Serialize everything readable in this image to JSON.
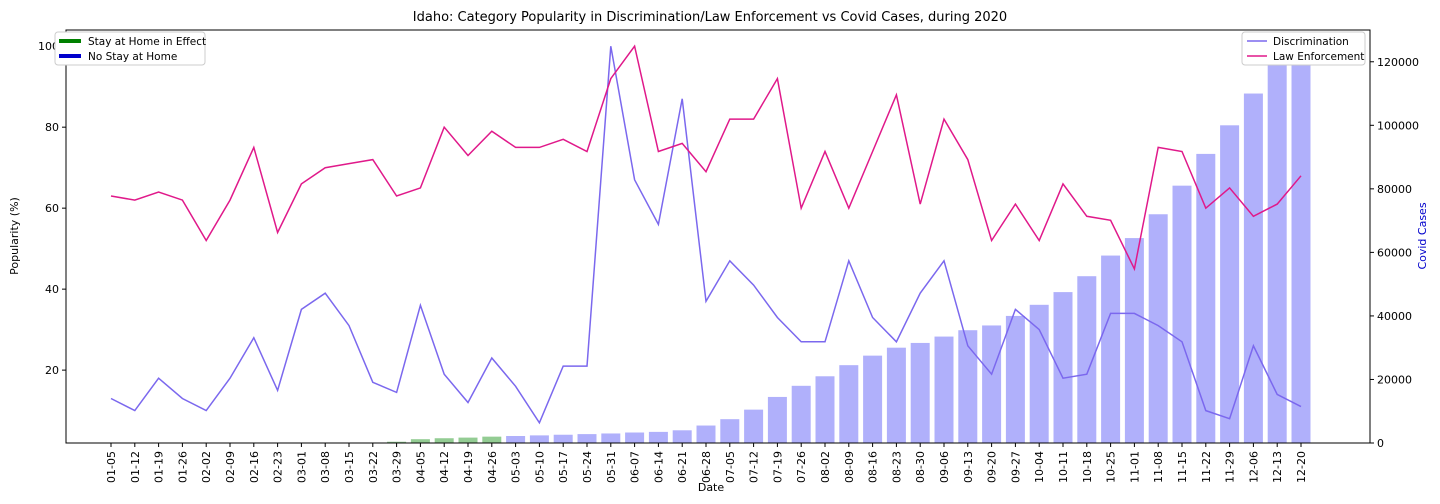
{
  "chart_data": {
    "type": "bar+line",
    "title": "Idaho: Category Popularity in Discrimination/Law Enforcement vs Covid Cases, during 2020",
    "xlabel": "Date",
    "ylabel_left": "Popularity (%)",
    "ylabel_right": "Covid Cases",
    "ylim_left": [
      2,
      104
    ],
    "ylim_right": [
      0,
      130000
    ],
    "yticks_left": [
      20,
      40,
      60,
      80,
      100
    ],
    "yticks_right": [
      0,
      20000,
      40000,
      60000,
      80000,
      100000,
      120000
    ],
    "categories": [
      "01-05",
      "01-12",
      "01-19",
      "01-26",
      "02-02",
      "02-09",
      "02-16",
      "02-23",
      "03-01",
      "03-08",
      "03-15",
      "03-22",
      "03-29",
      "04-05",
      "04-12",
      "04-19",
      "04-26",
      "05-03",
      "05-10",
      "05-17",
      "05-24",
      "05-31",
      "06-07",
      "06-14",
      "06-21",
      "06-28",
      "07-05",
      "07-12",
      "07-19",
      "07-26",
      "08-02",
      "08-09",
      "08-16",
      "08-23",
      "08-30",
      "09-06",
      "09-13",
      "09-20",
      "09-27",
      "10-04",
      "10-11",
      "10-18",
      "10-25",
      "11-01",
      "11-08",
      "11-15",
      "11-22",
      "11-29",
      "12-06",
      "12-13",
      "12-20"
    ],
    "series": [
      {
        "name": "Discrimination",
        "color": "#7b68ee",
        "axis": "left",
        "values": [
          13,
          10,
          18,
          13,
          10,
          18,
          28,
          15,
          35,
          39,
          31,
          17,
          14.5,
          36,
          19,
          12,
          23,
          16,
          7,
          21,
          21,
          100,
          67,
          56,
          87,
          37,
          47,
          41,
          33,
          27,
          27,
          47,
          33,
          27,
          39,
          47,
          26,
          19,
          35,
          30,
          18,
          19,
          34,
          34,
          31,
          27,
          10,
          8,
          26,
          14,
          11
        ]
      },
      {
        "name": "Law Enforcement",
        "color": "#e0198a",
        "axis": "left",
        "values": [
          63,
          62,
          64,
          62,
          52,
          62,
          75,
          54,
          66,
          70,
          71,
          72,
          63,
          65,
          80,
          73,
          79,
          75,
          75,
          77,
          74,
          92,
          100,
          74,
          76,
          69,
          82,
          82,
          92,
          60,
          74,
          60,
          74,
          88,
          61,
          82,
          72,
          52,
          61,
          52,
          66,
          58,
          57,
          45,
          75,
          74,
          60,
          65,
          58,
          61,
          68
        ]
      },
      {
        "name": "Covid Cases",
        "axis": "right",
        "bar_color_stay_home": "#93cc93",
        "bar_color_default": "#b0b0fb",
        "values": [
          0,
          0,
          0,
          0,
          0,
          0,
          0,
          0,
          0,
          0,
          0,
          0,
          400,
          1200,
          1500,
          1700,
          2000,
          2200,
          2400,
          2600,
          2800,
          3000,
          3300,
          3500,
          4000,
          5500,
          7500,
          10500,
          14500,
          18000,
          21000,
          24500,
          27500,
          30000,
          31500,
          33500,
          35500,
          37000,
          40000,
          43500,
          47500,
          52500,
          59000,
          64500,
          72000,
          81000,
          91000,
          100000,
          110000,
          121000,
          129000
        ]
      }
    ],
    "stay_at_home_range": [
      "03-29",
      "04-26"
    ],
    "legend_left": [
      {
        "label": "Stay at Home in Effect",
        "color": "#008000"
      },
      {
        "label": "No Stay at Home",
        "color": "#0000cc"
      }
    ],
    "legend_right": [
      {
        "label": "Discrimination",
        "color": "#7b68ee"
      },
      {
        "label": "Law Enforcement",
        "color": "#e0198a"
      }
    ],
    "legend_left_placement": "top-left",
    "legend_right_placement": "top-right",
    "grid": false
  }
}
